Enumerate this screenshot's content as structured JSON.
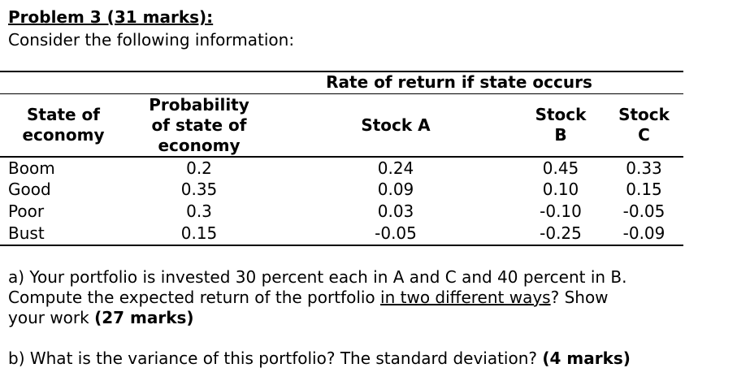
{
  "title": "Problem 3 (31 marks):",
  "intro": "Consider the following information:",
  "table": {
    "group_header": "Rate of return if state occurs",
    "columns": {
      "state": [
        "State of",
        "economy"
      ],
      "probability": [
        "Probability",
        "of state of",
        "economy"
      ],
      "stock_a": [
        "Stock A"
      ],
      "stock_b": [
        "Stock",
        "B"
      ],
      "stock_c": [
        "Stock",
        "C"
      ]
    },
    "rows": [
      {
        "state": "Boom",
        "probability": "0.2",
        "stock_a": "0.24",
        "stock_b": "0.45",
        "stock_c": "0.33"
      },
      {
        "state": "Good",
        "probability": "0.35",
        "stock_a": "0.09",
        "stock_b": "0.10",
        "stock_c": "0.15"
      },
      {
        "state": "Poor",
        "probability": "0.3",
        "stock_a": "0.03",
        "stock_b": "-0.10",
        "stock_c": "-0.05"
      },
      {
        "state": "Bust",
        "probability": "0.15",
        "stock_a": "-0.05",
        "stock_b": "-0.25",
        "stock_c": "-0.09"
      }
    ]
  },
  "question_a": {
    "line1": "a) Your portfolio is invested 30 percent each in A and C and 40 percent in B.",
    "line2_prefix": "Compute the expected return of the portfolio ",
    "line2_underlined": "in two different ways",
    "line2_suffix": "? Show",
    "line3_prefix": "your work ",
    "line3_bold": "(27 marks)"
  },
  "question_b": {
    "text": "b) What is the variance of this portfolio? The standard deviation? ",
    "bold": "(4 marks)"
  }
}
